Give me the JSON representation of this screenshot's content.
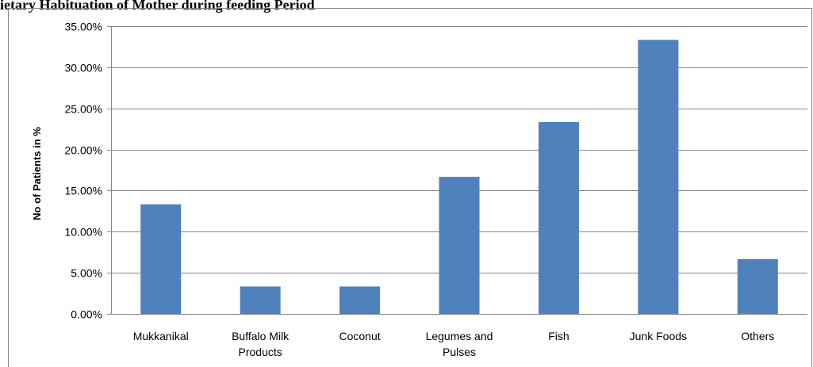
{
  "chart_data": {
    "type": "bar",
    "title": "ietary Habituation of Mother during feeding Period",
    "xlabel": "",
    "ylabel": "No of Patients in %",
    "categories": [
      [
        "Mukkanikal"
      ],
      [
        "Buffalo Milk",
        "Products"
      ],
      [
        "Coconut"
      ],
      [
        "Legumes and",
        "Pulses"
      ],
      [
        "Fish"
      ],
      [
        "Junk Foods"
      ],
      [
        "Others"
      ]
    ],
    "values": [
      13.33,
      3.33,
      3.33,
      16.67,
      23.33,
      33.33,
      6.67
    ],
    "ylim": [
      0,
      35
    ],
    "yticks": [
      "0.00%",
      "5.00%",
      "10.00%",
      "15.00%",
      "20.00%",
      "25.00%",
      "30.00%",
      "35.00%"
    ],
    "grid": true,
    "legend": "none",
    "bar_color": "#4F81BD",
    "grid_color": "#868686"
  }
}
